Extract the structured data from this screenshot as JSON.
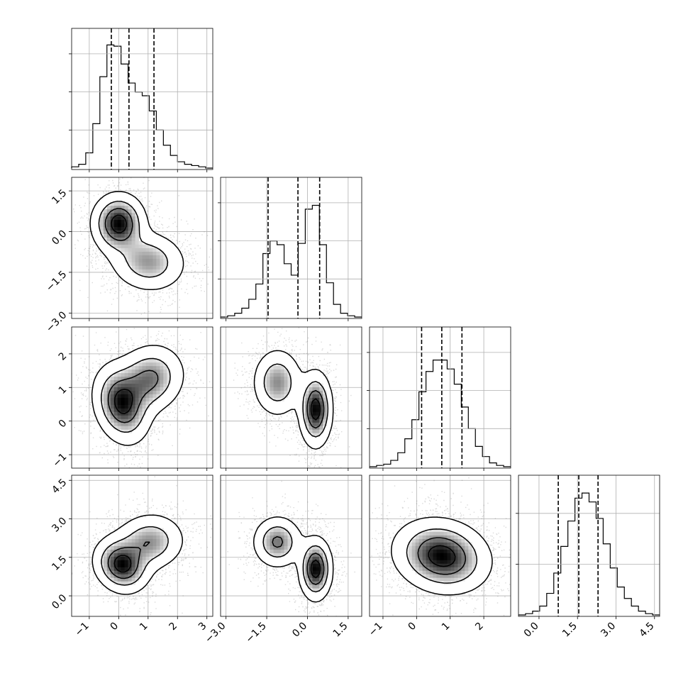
{
  "chart_data": {
    "type": "corner",
    "parameters": 4,
    "quantiles": [
      0.16,
      0.5,
      0.84
    ],
    "quantile_lines": [
      [
        -0.25,
        0.35,
        1.2
      ],
      [
        -1.45,
        -0.35,
        0.45
      ],
      [
        0.15,
        0.75,
        1.35
      ],
      [
        0.75,
        1.55,
        2.3
      ]
    ],
    "ranges": [
      [
        -1.6,
        3.2
      ],
      [
        -3.2,
        2.0
      ],
      [
        -1.4,
        2.8
      ],
      [
        -0.8,
        4.7
      ]
    ],
    "ticks": [
      {
        "values": [
          -1,
          0,
          1,
          2,
          3
        ],
        "labels": [
          "−1",
          "0",
          "1",
          "2",
          "3"
        ]
      },
      {
        "values": [
          -3.0,
          -1.5,
          0.0,
          1.5
        ],
        "labels": [
          "−3.0",
          "−1.5",
          "0.0",
          "1.5"
        ]
      },
      {
        "values": [
          -1,
          0,
          1,
          2
        ],
        "labels": [
          "−1",
          "0",
          "1",
          "2"
        ]
      },
      {
        "values": [
          0.0,
          1.5,
          3.0,
          4.5
        ],
        "labels": [
          "0.0",
          "1.5",
          "3.0",
          "4.5"
        ]
      }
    ],
    "hist_yticks": [
      [
        0.3,
        0.6,
        0.9
      ],
      [
        0.3,
        0.6,
        0.9
      ],
      [
        0.3,
        0.6,
        0.9
      ],
      [
        0.4,
        0.8
      ]
    ],
    "histograms": [
      {
        "bins": 20,
        "heights": [
          0.01,
          0.03,
          0.12,
          0.35,
          0.72,
          0.97,
          0.96,
          0.82,
          0.67,
          0.6,
          0.57,
          0.45,
          0.3,
          0.18,
          0.1,
          0.05,
          0.03,
          0.02,
          0.01,
          0.0
        ]
      },
      {
        "bins": 20,
        "heights": [
          0.0,
          0.01,
          0.03,
          0.07,
          0.14,
          0.26,
          0.5,
          0.6,
          0.57,
          0.42,
          0.33,
          0.58,
          0.85,
          0.88,
          0.57,
          0.27,
          0.1,
          0.03,
          0.01,
          0.0
        ]
      },
      {
        "bins": 20,
        "heights": [
          0.0,
          0.01,
          0.02,
          0.05,
          0.11,
          0.22,
          0.37,
          0.59,
          0.75,
          0.84,
          0.84,
          0.77,
          0.65,
          0.47,
          0.3,
          0.16,
          0.08,
          0.03,
          0.01,
          0.0
        ]
      },
      {
        "bins": 20,
        "heights": [
          0.0,
          0.01,
          0.03,
          0.07,
          0.17,
          0.33,
          0.54,
          0.74,
          0.92,
          0.96,
          0.89,
          0.76,
          0.56,
          0.37,
          0.22,
          0.13,
          0.07,
          0.03,
          0.01,
          0.0
        ]
      }
    ],
    "pairs": [
      {
        "row": 1,
        "col": 0,
        "modes": [
          {
            "cx": 0.0,
            "cy": 0.3,
            "sx": 0.45,
            "sy": 0.55,
            "rot": 0,
            "w": 0.55
          },
          {
            "cx": 1.0,
            "cy": -1.1,
            "sx": 0.65,
            "sy": 0.55,
            "rot": -0.25,
            "w": 0.45
          }
        ]
      },
      {
        "row": 2,
        "col": 0,
        "modes": [
          {
            "cx": 0.1,
            "cy": 0.5,
            "sx": 0.45,
            "sy": 0.6,
            "rot": 0.4,
            "w": 0.55
          },
          {
            "cx": 1.05,
            "cy": 1.25,
            "sx": 0.6,
            "sy": 0.5,
            "rot": 0.35,
            "w": 0.45
          }
        ]
      },
      {
        "row": 2,
        "col": 1,
        "modes": [
          {
            "cx": -1.1,
            "cy": 1.15,
            "sx": 0.45,
            "sy": 0.5,
            "rot": 0,
            "w": 0.45
          },
          {
            "cx": 0.3,
            "cy": 0.35,
            "sx": 0.3,
            "sy": 0.55,
            "rot": 0,
            "w": 0.55
          }
        ]
      },
      {
        "row": 3,
        "col": 0,
        "modes": [
          {
            "cx": 0.1,
            "cy": 1.2,
            "sx": 0.45,
            "sy": 0.55,
            "rot": 0.4,
            "w": 0.55
          },
          {
            "cx": 1.05,
            "cy": 2.1,
            "sx": 0.6,
            "sy": 0.55,
            "rot": 0.35,
            "w": 0.45
          }
        ]
      },
      {
        "row": 3,
        "col": 1,
        "modes": [
          {
            "cx": -1.1,
            "cy": 2.1,
            "sx": 0.45,
            "sy": 0.5,
            "rot": 0,
            "w": 0.45
          },
          {
            "cx": 0.3,
            "cy": 1.05,
            "sx": 0.3,
            "sy": 0.6,
            "rot": 0,
            "w": 0.55
          }
        ]
      },
      {
        "row": 3,
        "col": 2,
        "modes": [
          {
            "cx": 0.75,
            "cy": 1.55,
            "sx": 0.65,
            "sy": 0.75,
            "rot": 0.75,
            "w": 1.0
          }
        ]
      }
    ],
    "grid": true,
    "legend": "none"
  }
}
